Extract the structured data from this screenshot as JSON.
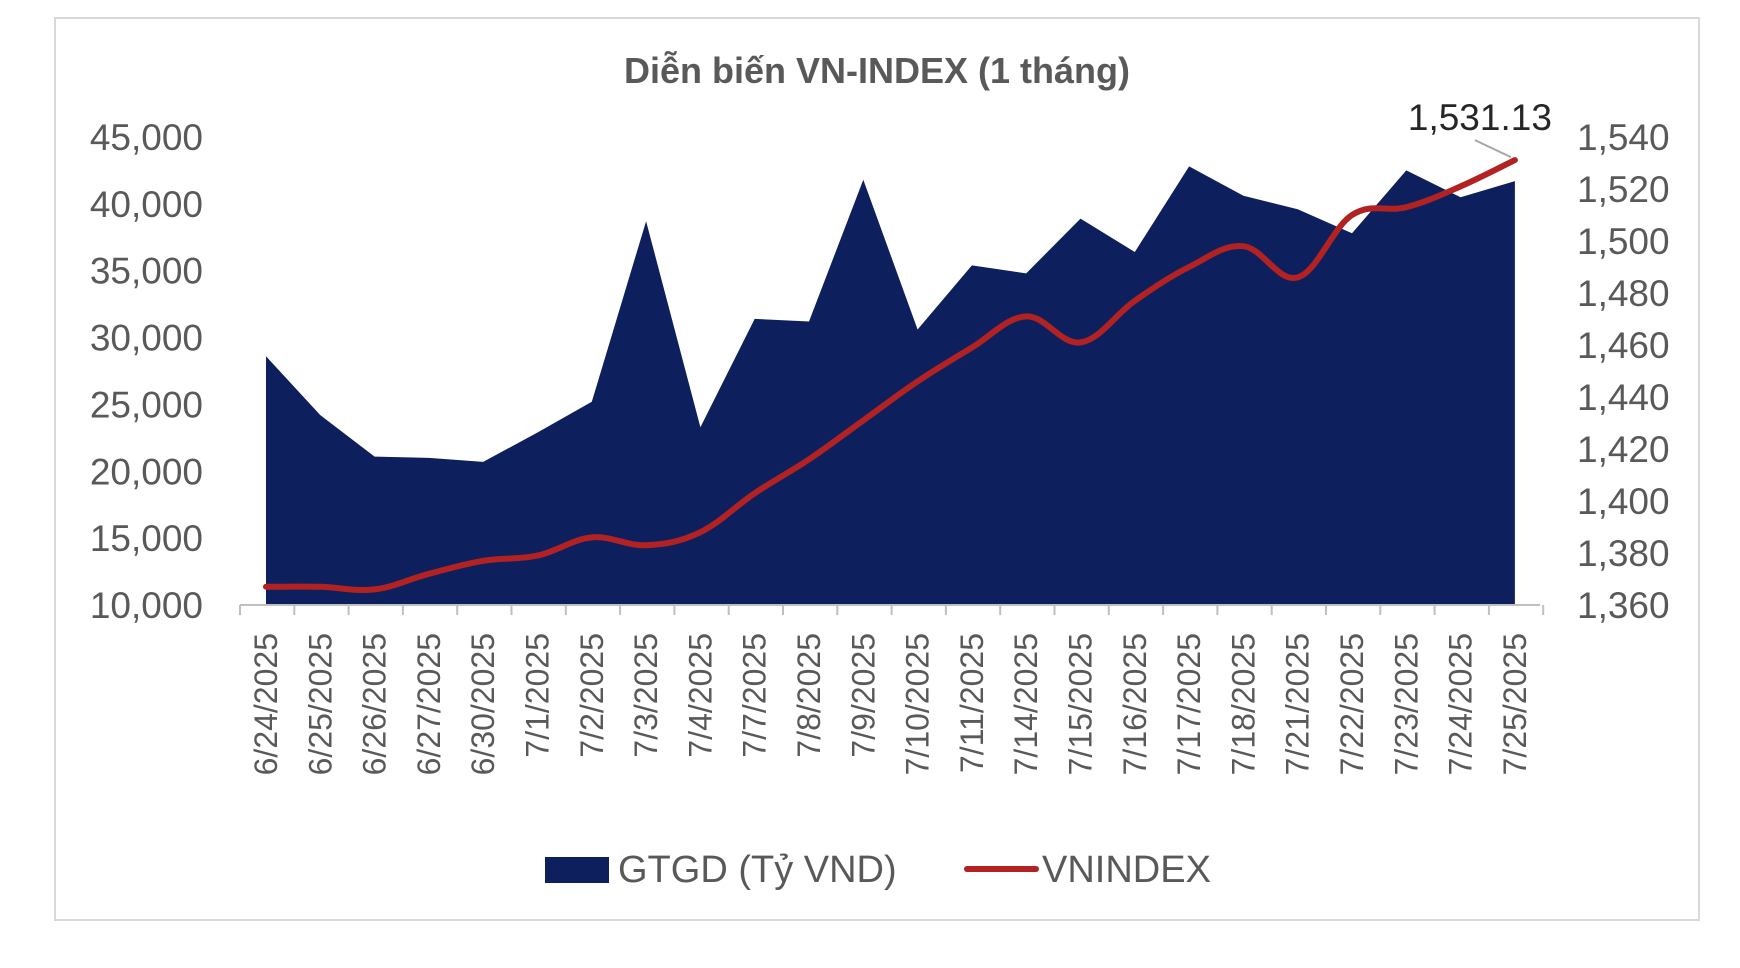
{
  "chart_data": {
    "type": "area+line",
    "title": "Diễn biến VN-INDEX (1 tháng)",
    "categories": [
      "6/24/2025",
      "6/25/2025",
      "6/26/2025",
      "6/27/2025",
      "6/30/2025",
      "7/1/2025",
      "7/2/2025",
      "7/3/2025",
      "7/4/2025",
      "7/7/2025",
      "7/8/2025",
      "7/9/2025",
      "7/10/2025",
      "7/11/2025",
      "7/14/2025",
      "7/15/2025",
      "7/16/2025",
      "7/17/2025",
      "7/18/2025",
      "7/21/2025",
      "7/22/2025",
      "7/23/2025",
      "7/24/2025",
      "7/25/2025"
    ],
    "series": [
      {
        "name": "GTGD (Tỷ VND)",
        "type": "area",
        "axis": "left",
        "color": "#0d1f5c",
        "values": [
          28600,
          24200,
          21100,
          21000,
          20700,
          22900,
          25200,
          38700,
          23300,
          31400,
          31200,
          41800,
          30600,
          35400,
          34800,
          38900,
          36400,
          42800,
          40600,
          39600,
          37800,
          42500,
          40500,
          41700
        ]
      },
      {
        "name": "VNINDEX",
        "type": "line",
        "axis": "right",
        "color": "#b22222",
        "values": [
          1367,
          1367,
          1366,
          1372,
          1377,
          1379,
          1386,
          1383,
          1388,
          1403,
          1416,
          1431,
          1446,
          1459,
          1471,
          1461,
          1477,
          1490,
          1498,
          1486,
          1510,
          1513,
          1521,
          1531.13
        ]
      }
    ],
    "yaxis_left": {
      "ticks": [
        "10,000",
        "15,000",
        "20,000",
        "25,000",
        "30,000",
        "35,000",
        "40,000",
        "45,000"
      ],
      "ylim": [
        10000,
        45000
      ]
    },
    "yaxis_right": {
      "ticks": [
        "1,360",
        "1,380",
        "1,400",
        "1,420",
        "1,440",
        "1,460",
        "1,480",
        "1,500",
        "1,520",
        "1,540"
      ],
      "ylim": [
        1360,
        1540
      ]
    },
    "annotation": {
      "label": "1,531.13",
      "index": 23
    },
    "legend": {
      "position": "bottom",
      "area_label": "GTGD (Tỷ VND)",
      "line_label": "VNINDEX"
    }
  }
}
